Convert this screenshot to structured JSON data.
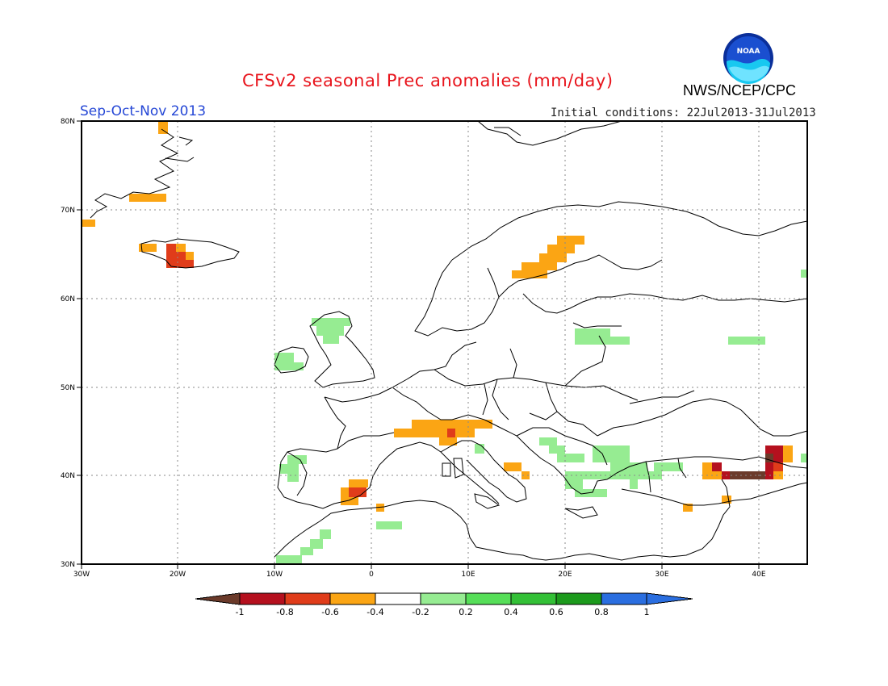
{
  "title": "CFSv2 seasonal Prec anomalies (mm/day)",
  "season": "Sep-Oct-Nov 2013",
  "initial_conditions": "Initial conditions: 22Jul2013-31Jul2013",
  "agency": "NWS/NCEP/CPC",
  "logo_text": "NOAA",
  "map": {
    "lon_labels": [
      "30W",
      "20W",
      "10W",
      "0",
      "10E",
      "20E",
      "30E",
      "40E"
    ],
    "lat_labels": [
      "80N",
      "70N",
      "60N",
      "50N",
      "40N",
      "30N"
    ],
    "lon_range": [
      -30,
      45
    ],
    "lat_range": [
      30,
      80
    ]
  },
  "colorbar": {
    "labels": [
      "-1",
      "-0.8",
      "-0.6",
      "-0.4",
      "-0.2",
      "0.2",
      "0.4",
      "0.6",
      "0.8",
      "1"
    ],
    "colors": [
      "#6b3a2a",
      "#b5101e",
      "#e03c1a",
      "#fba514",
      "#ffffff",
      "#96ec92",
      "#56de58",
      "#33c036",
      "#1c9a1c",
      "#2a6ee0"
    ]
  }
}
